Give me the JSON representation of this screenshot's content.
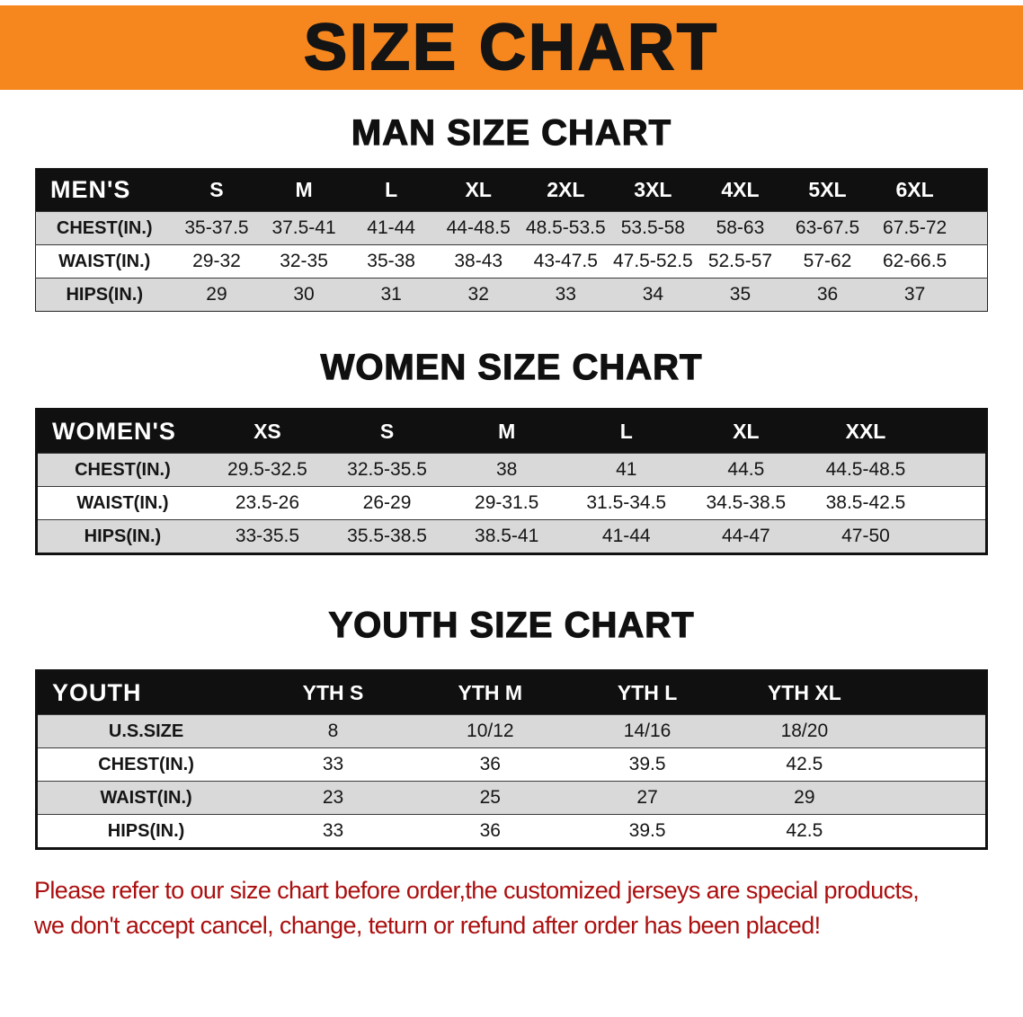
{
  "banner": {
    "title": "SIZE CHART",
    "bg_color": "#f6871f"
  },
  "colors": {
    "table_header_bg": "#101010",
    "row_stripe": "#d9d9d9",
    "footer_text": "#ab0f0f"
  },
  "men": {
    "heading": "MAN SIZE CHART",
    "header": [
      "MEN'S",
      "S",
      "M",
      "L",
      "XL",
      "2XL",
      "3XL",
      "4XL",
      "5XL",
      "6XL"
    ],
    "rows": [
      {
        "label": "CHEST(IN.)",
        "values": [
          "35-37.5",
          "37.5-41",
          "41-44",
          "44-48.5",
          "48.5-53.5",
          "53.5-58",
          "58-63",
          "63-67.5",
          "67.5-72"
        ]
      },
      {
        "label": "WAIST(IN.)",
        "values": [
          "29-32",
          "32-35",
          "35-38",
          "38-43",
          "43-47.5",
          "47.5-52.5",
          "52.5-57",
          "57-62",
          "62-66.5"
        ]
      },
      {
        "label": "HIPS(IN.)",
        "values": [
          "29",
          "30",
          "31",
          "32",
          "33",
          "34",
          "35",
          "36",
          "37"
        ]
      }
    ]
  },
  "women": {
    "heading": "WOMEN SIZE CHART",
    "header": [
      "WOMEN'S",
      "XS",
      "S",
      "M",
      "L",
      "XL",
      "XXL"
    ],
    "rows": [
      {
        "label": "CHEST(IN.)",
        "values": [
          "29.5-32.5",
          "32.5-35.5",
          "38",
          "41",
          "44.5",
          "44.5-48.5"
        ]
      },
      {
        "label": "WAIST(IN.)",
        "values": [
          "23.5-26",
          "26-29",
          "29-31.5",
          "31.5-34.5",
          "34.5-38.5",
          "38.5-42.5"
        ]
      },
      {
        "label": "HIPS(IN.)",
        "values": [
          "33-35.5",
          "35.5-38.5",
          "38.5-41",
          "41-44",
          "44-47",
          "47-50"
        ]
      }
    ]
  },
  "youth": {
    "heading": "YOUTH SIZE CHART",
    "header": [
      "YOUTH",
      "YTH S",
      "YTH M",
      "YTH L",
      "YTH XL"
    ],
    "rows": [
      {
        "label": "U.S.SIZE",
        "values": [
          "8",
          "10/12",
          "14/16",
          "18/20"
        ]
      },
      {
        "label": "CHEST(IN.)",
        "values": [
          "33",
          "36",
          "39.5",
          "42.5"
        ]
      },
      {
        "label": "WAIST(IN.)",
        "values": [
          "23",
          "25",
          "27",
          "29"
        ]
      },
      {
        "label": "HIPS(IN.)",
        "values": [
          "33",
          "36",
          "39.5",
          "42.5"
        ]
      }
    ]
  },
  "footer": {
    "line1": "Please refer to our size chart before order,the customized jerseys are special products,",
    "line2": "we don't accept cancel, change, teturn or refund after order has been placed!"
  }
}
